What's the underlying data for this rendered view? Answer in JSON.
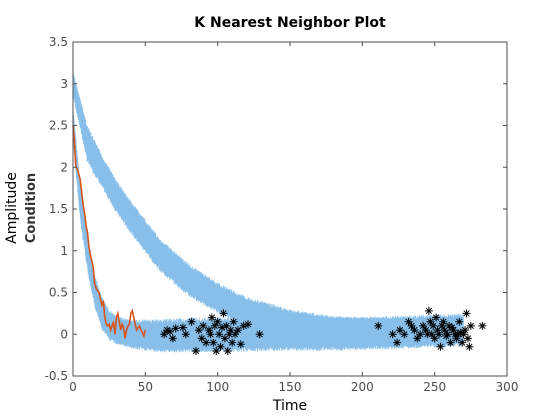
{
  "chart_data": {
    "type": "line",
    "title": "K Nearest Neighbor Plot",
    "xlabel": "Time",
    "ylabel": "Amplitude",
    "ylabel_secondary": "Condition",
    "xlim": [
      0,
      300
    ],
    "ylim": [
      -0.5,
      3.5
    ],
    "xticks": [
      "0",
      "50",
      "100",
      "150",
      "200",
      "250",
      "300"
    ],
    "yticks": [
      "-0.5",
      "0",
      "0.5",
      "1",
      "1.5",
      "2",
      "2.5",
      "3",
      "3.5"
    ],
    "grid": false,
    "colors": {
      "band": "#87bfea",
      "trace": "#d95319",
      "markers": "#000000",
      "axes": "#4d4d4d"
    },
    "series": [
      {
        "style": "noisy-band",
        "x": [
          0,
          10,
          20,
          30,
          40,
          60,
          80,
          100,
          120,
          150,
          180,
          210,
          240,
          270
        ],
        "upper": [
          3.15,
          2.5,
          2.15,
          1.85,
          1.6,
          1.15,
          0.85,
          0.62,
          0.45,
          0.3,
          0.22,
          0.2,
          0.2,
          0.2
        ],
        "lower": [
          2.85,
          2.05,
          1.75,
          1.45,
          1.2,
          0.75,
          0.45,
          0.25,
          0.08,
          -0.05,
          -0.08,
          -0.1,
          -0.1,
          -0.1
        ]
      },
      {
        "style": "noisy-band",
        "x": [
          0,
          5,
          10,
          15,
          20,
          25,
          30,
          40,
          50,
          60,
          80,
          100,
          140,
          180,
          220,
          270
        ],
        "upper": [
          2.75,
          1.8,
          1.2,
          0.72,
          0.45,
          0.3,
          0.22,
          0.18,
          0.18,
          0.18,
          0.2,
          0.2,
          0.2,
          0.2,
          0.22,
          0.25
        ],
        "lower": [
          2.3,
          1.35,
          0.75,
          0.32,
          0.05,
          -0.08,
          -0.12,
          -0.18,
          -0.2,
          -0.22,
          -0.22,
          -0.22,
          -0.2,
          -0.2,
          -0.18,
          -0.15
        ]
      },
      {
        "style": "line",
        "x": [
          0,
          1,
          2,
          3,
          4,
          5,
          6,
          7,
          8,
          9,
          10,
          11,
          12,
          13,
          14,
          15,
          16,
          17,
          18,
          19,
          20,
          21,
          22,
          23,
          24,
          25,
          26,
          27,
          28,
          29,
          30,
          31,
          32,
          33,
          34,
          35,
          36,
          37,
          38,
          39,
          40,
          41,
          42,
          43,
          44,
          45,
          46,
          47,
          48,
          49,
          50
        ],
        "y": [
          2.5,
          2.3,
          2.0,
          1.98,
          1.92,
          1.85,
          1.7,
          1.55,
          1.45,
          1.3,
          1.22,
          1.05,
          0.95,
          0.88,
          0.8,
          0.6,
          0.55,
          0.52,
          0.5,
          0.42,
          0.35,
          0.4,
          0.2,
          0.12,
          0.1,
          0.12,
          0.05,
          0.1,
          0.15,
          0.0,
          0.2,
          0.25,
          0.15,
          0.05,
          0.12,
          0.08,
          -0.05,
          0.05,
          0.1,
          0.12,
          0.25,
          0.28,
          0.2,
          0.12,
          0.05,
          0.08,
          0.1,
          0.05,
          0.02,
          -0.02,
          0.05
        ]
      },
      {
        "style": "markers",
        "marker": "*",
        "x": [
          63,
          65,
          67,
          69,
          71,
          76,
          78,
          82,
          85,
          87,
          89,
          90,
          92,
          94,
          95,
          96,
          97,
          98,
          99,
          100,
          101,
          102,
          103,
          104,
          105,
          106,
          107,
          108,
          109,
          110,
          111,
          112,
          114,
          116,
          118,
          121,
          129,
          211,
          221,
          224,
          226,
          229,
          232,
          234,
          236,
          238,
          240,
          242,
          244,
          245,
          246,
          247,
          248,
          249,
          250,
          251,
          252,
          253,
          254,
          255,
          256,
          257,
          258,
          259,
          260,
          261,
          262,
          263,
          264,
          265,
          266,
          267,
          268,
          269,
          270,
          271,
          272,
          273,
          274,
          275,
          283
        ],
        "y": [
          0.0,
          0.05,
          0.03,
          -0.05,
          0.07,
          0.08,
          0.0,
          0.15,
          -0.2,
          0.05,
          -0.05,
          0.1,
          -0.1,
          0.05,
          0.0,
          0.2,
          -0.1,
          0.1,
          -0.2,
          0.15,
          0.0,
          -0.15,
          0.08,
          0.25,
          -0.05,
          0.1,
          -0.2,
          0.0,
          0.05,
          -0.1,
          0.15,
          0.0,
          0.05,
          -0.12,
          0.1,
          0.12,
          0.0,
          0.1,
          0.0,
          -0.1,
          0.05,
          0.0,
          0.15,
          0.1,
          0.05,
          -0.05,
          0.0,
          0.1,
          0.05,
          0.0,
          0.28,
          0.15,
          0.0,
          0.1,
          -0.05,
          0.2,
          0.05,
          0.0,
          -0.15,
          0.1,
          0.15,
          0.05,
          -0.02,
          0.0,
          0.1,
          -0.1,
          0.08,
          0.05,
          0.0,
          -0.05,
          0.0,
          0.15,
          0.02,
          -0.1,
          0.0,
          0.05,
          0.25,
          -0.05,
          -0.15,
          0.1,
          0.1
        ]
      }
    ]
  }
}
